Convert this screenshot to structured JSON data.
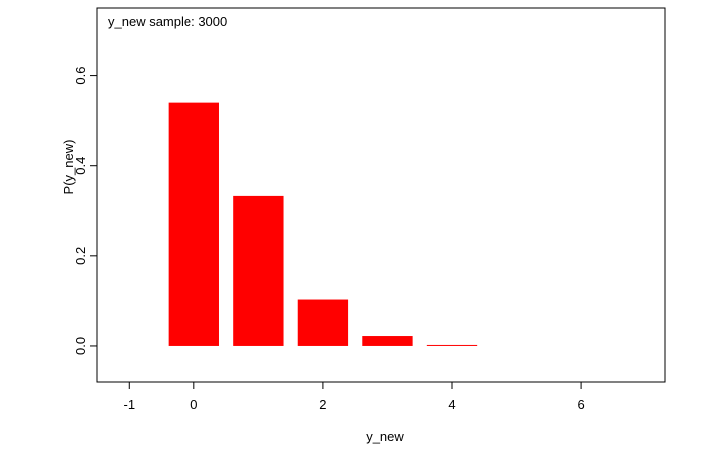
{
  "chart_data": {
    "type": "bar",
    "annotation": "y_new sample: 3000",
    "xlabel": "y_new",
    "ylabel": "P(y_new)",
    "x": [
      0,
      1,
      2,
      3,
      4
    ],
    "values": [
      0.54,
      0.333,
      0.103,
      0.022,
      0.002
    ],
    "bar_color": "#ff0000",
    "xlim": [
      -1.5,
      7.3
    ],
    "ylim": [
      -0.08,
      0.75
    ],
    "xticks": [
      -1,
      0,
      2,
      4,
      6
    ],
    "xtick_labels": [
      "-1",
      "0",
      "2",
      "4",
      "6"
    ],
    "yticks": [
      0.0,
      0.2,
      0.4,
      0.6
    ],
    "ytick_labels": [
      "0.0",
      "0.2",
      "0.4",
      "0.6"
    ],
    "grid": false,
    "legend": "none"
  }
}
